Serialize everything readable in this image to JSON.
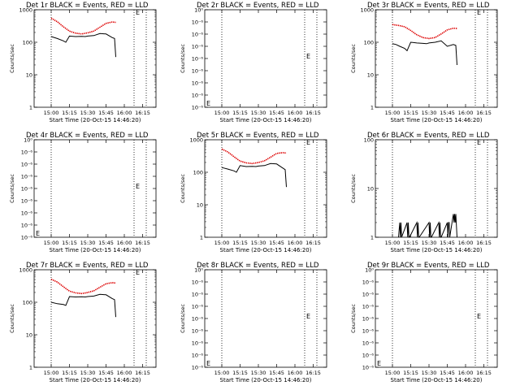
{
  "colors": {
    "events": "#000000",
    "lld": "#dd0000",
    "axis": "#000000"
  },
  "chart_data": [
    {
      "type": "line",
      "title": "Det 1r BLACK = Events, RED = LLD",
      "ylabel": "Counts/sec",
      "xlabel": "Start Time (20-Oct-15 14:46:20)",
      "yscale": "log",
      "ylim": [
        1,
        1000
      ],
      "yticks": [
        "1",
        "10",
        "100",
        "1000"
      ],
      "xticks": [
        "15:00",
        "15:15",
        "15:30",
        "15:45",
        "16:00",
        "16:15"
      ],
      "vlines": [
        "15:00",
        "16:08",
        "16:18"
      ],
      "marker_label": "E",
      "marker_value": 1000,
      "series": [
        {
          "role": "events",
          "x": [
            0,
            5,
            10,
            12,
            15,
            20,
            25,
            28,
            30,
            35,
            40,
            45,
            50,
            52,
            53
          ],
          "y": [
            150,
            130,
            110,
            100,
            155,
            150,
            152,
            150,
            155,
            160,
            185,
            180,
            140,
            130,
            35
          ]
        },
        {
          "role": "lld",
          "x": [
            0,
            5,
            10,
            15,
            20,
            25,
            30,
            35,
            40,
            45,
            50,
            53
          ],
          "y": [
            550,
            430,
            300,
            220,
            190,
            180,
            195,
            220,
            290,
            380,
            420,
            410
          ]
        }
      ]
    },
    {
      "type": "line",
      "title": "Det 2r BLACK = Events, RED = LLD",
      "ylabel": "Counts/sec",
      "xlabel": "Start Time (20-Oct-15 14:46:20)",
      "yscale": "log",
      "ylim": [
        0.999999,
        1.000001
      ],
      "yticks": [
        "10⁻⁶",
        "10⁻⁶",
        "10⁻⁶",
        "10⁻⁶",
        "10⁻⁶",
        "10⁻⁶",
        "10⁻⁶",
        "10⁻⁶",
        "10⁰"
      ],
      "xticks": [
        "15:00",
        "15:15",
        "15:30",
        "15:45",
        "16:00",
        "16:15"
      ],
      "vlines": [
        "15:00",
        "16:08",
        "16:18"
      ],
      "marker_label": "E",
      "marker_value": 1,
      "series": []
    },
    {
      "type": "line",
      "title": "Det 3r BLACK = Events, RED = LLD",
      "ylabel": "Counts/sec",
      "xlabel": "Start Time (20-Oct-15 14:46:20)",
      "yscale": "log",
      "ylim": [
        1,
        1000
      ],
      "yticks": [
        "1",
        "10",
        "100",
        "1000"
      ],
      "xticks": [
        "15:00",
        "15:15",
        "15:30",
        "15:45",
        "16:00",
        "16:15"
      ],
      "vlines": [
        "15:00",
        "16:08",
        "16:18"
      ],
      "marker_label": "E",
      "marker_value": 1000,
      "series": [
        {
          "role": "events",
          "x": [
            0,
            3,
            6,
            10,
            12,
            15,
            20,
            25,
            28,
            30,
            35,
            40,
            45,
            50,
            52,
            53
          ],
          "y": [
            90,
            85,
            75,
            65,
            55,
            100,
            95,
            92,
            90,
            95,
            100,
            110,
            75,
            85,
            80,
            20
          ]
        },
        {
          "role": "lld",
          "x": [
            0,
            5,
            10,
            15,
            20,
            25,
            30,
            35,
            40,
            45,
            50,
            53
          ],
          "y": [
            350,
            330,
            300,
            230,
            170,
            140,
            130,
            140,
            180,
            240,
            270,
            265
          ]
        }
      ]
    },
    {
      "type": "line",
      "title": "Det 4r BLACK = Events, RED = LLD",
      "ylabel": "Counts/sec",
      "xlabel": "Start Time (20-Oct-15 14:46:20)",
      "yscale": "log",
      "ylim": [
        0.999999,
        1.000001
      ],
      "yticks": [
        "10⁻⁶",
        "10⁻⁶",
        "10⁻⁶",
        "10⁻⁶",
        "10⁻⁶",
        "10⁻⁶",
        "10⁻⁶",
        "10⁻⁶",
        "10⁰"
      ],
      "xticks": [
        "15:00",
        "15:15",
        "15:30",
        "15:45",
        "16:00",
        "16:15"
      ],
      "vlines": [
        "15:00",
        "16:08",
        "16:18"
      ],
      "marker_label": "E",
      "marker_value": 1,
      "series": []
    },
    {
      "type": "line",
      "title": "Det 5r BLACK = Events, RED = LLD",
      "ylabel": "Counts/sec",
      "xlabel": "Start Time (20-Oct-15 14:46:20)",
      "yscale": "log",
      "ylim": [
        1,
        1000
      ],
      "yticks": [
        "1",
        "10",
        "100",
        "1000"
      ],
      "xticks": [
        "15:00",
        "15:15",
        "15:30",
        "15:45",
        "16:00",
        "16:15"
      ],
      "vlines": [
        "15:00",
        "16:08",
        "16:18"
      ],
      "marker_label": "E",
      "marker_value": 1000,
      "series": [
        {
          "role": "events",
          "x": [
            0,
            5,
            10,
            12,
            15,
            20,
            25,
            28,
            30,
            35,
            40,
            45,
            50,
            52,
            53
          ],
          "y": [
            140,
            125,
            110,
            100,
            160,
            150,
            152,
            150,
            155,
            160,
            185,
            180,
            135,
            120,
            35
          ]
        },
        {
          "role": "lld",
          "x": [
            0,
            5,
            10,
            15,
            20,
            25,
            30,
            35,
            40,
            45,
            50,
            53
          ],
          "y": [
            520,
            420,
            300,
            220,
            195,
            185,
            200,
            225,
            290,
            380,
            400,
            390
          ]
        }
      ]
    },
    {
      "type": "line",
      "title": "Det 6r BLACK = Events, RED = LLD",
      "ylabel": "Counts/sec",
      "xlabel": "Start Time (20-Oct-15 14:46:20)",
      "yscale": "log",
      "ylim": [
        1,
        100
      ],
      "yticks": [
        "1",
        "10",
        "100"
      ],
      "xticks": [
        "15:00",
        "15:15",
        "15:30",
        "15:45",
        "16:00",
        "16:15"
      ],
      "vlines": [
        "15:00",
        "16:08",
        "16:18"
      ],
      "marker_label": "E",
      "marker_value": 100,
      "series": [
        {
          "role": "events",
          "x": [
            5,
            6,
            6.5,
            7,
            7.5,
            12,
            12.5,
            13,
            13.5,
            14,
            20,
            20.5,
            21,
            21.5,
            22,
            30,
            30.5,
            31,
            31.5,
            32,
            38,
            38.5,
            39,
            39.5,
            40,
            45,
            45.5,
            46,
            46.5,
            47,
            50,
            50.5,
            51,
            51.5,
            52,
            53
          ],
          "y": [
            1,
            2,
            1,
            2,
            1,
            2,
            1,
            2,
            1,
            1,
            2,
            1,
            2,
            1,
            1,
            2,
            1,
            2,
            1,
            1,
            2,
            1,
            2,
            1,
            1,
            2,
            1,
            2,
            2,
            1,
            3,
            2,
            3,
            2,
            3,
            1
          ]
        }
      ]
    },
    {
      "type": "line",
      "title": "Det 7r BLACK = Events, RED = LLD",
      "ylabel": "Counts/sec",
      "xlabel": "Start Time (20-Oct-15 14:46:20)",
      "yscale": "log",
      "ylim": [
        1,
        1000
      ],
      "yticks": [
        "1",
        "10",
        "100",
        "1000"
      ],
      "xticks": [
        "15:00",
        "15:15",
        "15:30",
        "15:45",
        "16:00",
        "16:15"
      ],
      "vlines": [
        "15:00",
        "16:08",
        "16:18"
      ],
      "marker_label": "E",
      "marker_value": 1000,
      "series": [
        {
          "role": "events",
          "x": [
            0,
            5,
            10,
            12,
            15,
            20,
            25,
            28,
            30,
            35,
            40,
            45,
            50,
            52,
            53
          ],
          "y": [
            100,
            90,
            85,
            80,
            150,
            145,
            148,
            145,
            150,
            155,
            175,
            170,
            130,
            120,
            35
          ]
        },
        {
          "role": "lld",
          "x": [
            0,
            5,
            10,
            15,
            20,
            25,
            30,
            35,
            40,
            45,
            50,
            53
          ],
          "y": [
            510,
            420,
            300,
            220,
            195,
            185,
            200,
            225,
            290,
            370,
            400,
            390
          ]
        }
      ]
    },
    {
      "type": "line",
      "title": "Det 8r BLACK = Events, RED = LLD",
      "ylabel": "Counts/sec",
      "xlabel": "Start Time (20-Oct-15 14:46:20)",
      "yscale": "log",
      "ylim": [
        0.999999,
        1.000001
      ],
      "yticks": [
        "10⁻⁶",
        "10⁻⁶",
        "10⁻⁶",
        "10⁻⁶",
        "10⁻⁶",
        "10⁻⁶",
        "10⁻⁶",
        "10⁻⁶",
        "10⁰"
      ],
      "xticks": [
        "15:00",
        "15:15",
        "15:30",
        "15:45",
        "16:00",
        "16:15"
      ],
      "vlines": [
        "15:00",
        "16:08",
        "16:18"
      ],
      "marker_label": "E",
      "marker_value": 1,
      "series": []
    },
    {
      "type": "line",
      "title": "Det 9r BLACK = Events, RED = LLD",
      "ylabel": "Counts/sec",
      "xlabel": "Start Time (20-Oct-15 14:46:20)",
      "yscale": "log",
      "ylim": [
        0.999999,
        1.000001
      ],
      "yticks": [
        "10⁻⁶",
        "10⁻⁶",
        "10⁻⁶",
        "10⁻⁶",
        "10⁻⁶",
        "10⁻⁶",
        "10⁻⁶",
        "10⁻⁶",
        "10⁰"
      ],
      "xticks": [
        "15:00",
        "15:15",
        "15:30",
        "15:45",
        "16:00",
        "16:15"
      ],
      "vlines": [
        "15:00",
        "16:08",
        "16:18"
      ],
      "marker_label": "E",
      "marker_value": 1,
      "series": []
    }
  ]
}
